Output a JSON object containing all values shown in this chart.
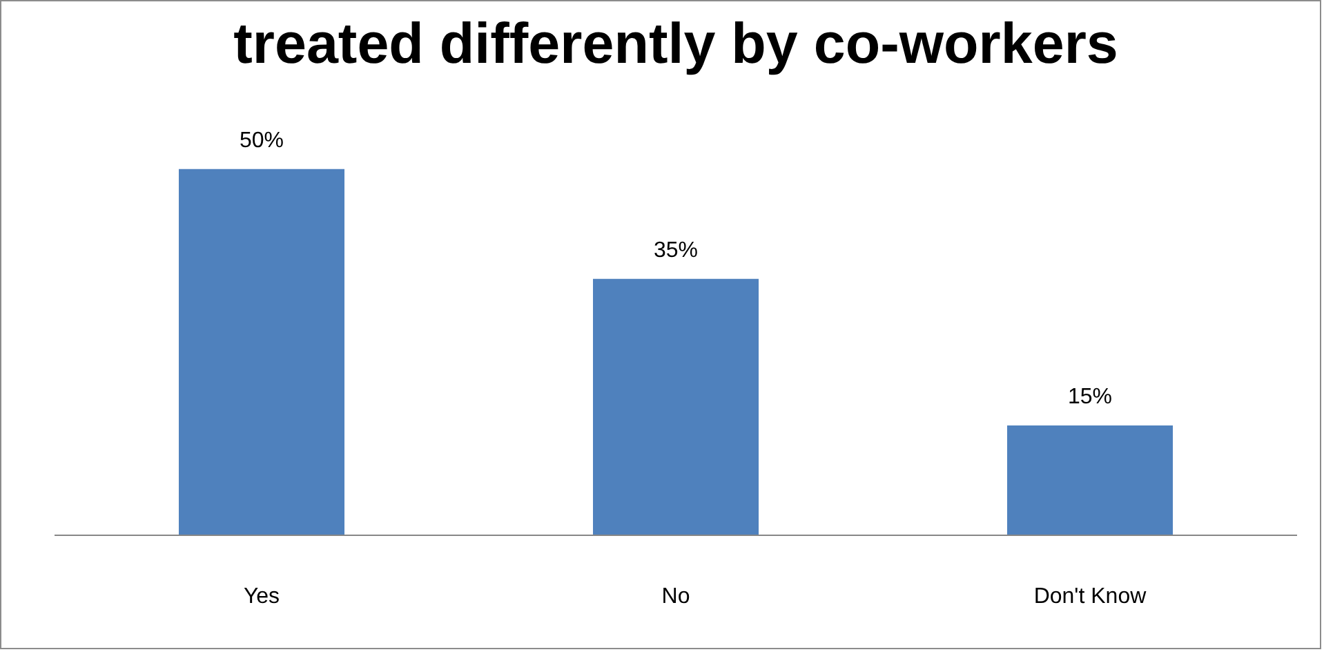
{
  "chart_data": {
    "type": "bar",
    "title": "treated differently by co-workers",
    "categories": [
      "Yes",
      "No",
      "Don't Know"
    ],
    "values": [
      50,
      35,
      15
    ],
    "value_labels": [
      "50%",
      "35%",
      "15%"
    ],
    "color": "#4f81bd"
  }
}
